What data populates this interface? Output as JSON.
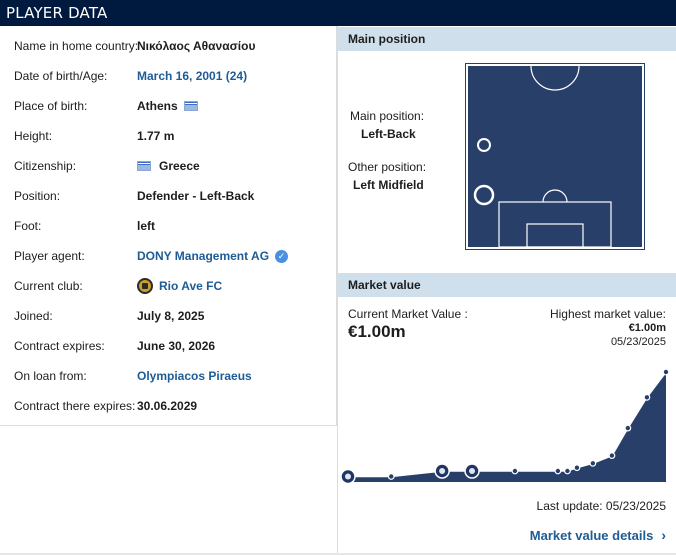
{
  "header": {
    "title": "PLAYER DATA"
  },
  "player": {
    "rows": [
      {
        "label": "Name in home country:",
        "value": "Νικόλαος Αθανασίου"
      },
      {
        "label": "Date of birth/Age:",
        "value": "March 16, 2001 (24)"
      },
      {
        "label": "Place of birth:",
        "value": "Athens"
      },
      {
        "label": "Height:",
        "value": "1.77 m"
      },
      {
        "label": "Citizenship:",
        "value": "Greece"
      },
      {
        "label": "Position:",
        "value": "Defender - Left-Back"
      },
      {
        "label": "Foot:",
        "value": "left"
      },
      {
        "label": "Player agent:",
        "value": "DONY Management AG"
      },
      {
        "label": "Current club:",
        "value": "Rio Ave FC"
      },
      {
        "label": "Joined:",
        "value": "July 8, 2025"
      },
      {
        "label": "Contract expires:",
        "value": "June 30, 2026"
      },
      {
        "label": "On loan from:",
        "value": "Olympiacos Piraeus"
      },
      {
        "label": "Contract there expires:",
        "value": "30.06.2029"
      }
    ]
  },
  "position": {
    "title": "Main position",
    "main_label": "Main position:",
    "main_value": "Left-Back",
    "other_label": "Other position:",
    "other_value": "Left Midfield"
  },
  "market": {
    "title": "Market value",
    "current_label": "Current Market Value :",
    "current_value": "€1.00m",
    "highest_label": "Highest market value:",
    "highest_value": "€1.00m",
    "highest_date": "05/23/2025",
    "last_update": "Last update: 05/23/2025",
    "details_link": "Market value details",
    "chevron": "›"
  },
  "chart_data": {
    "type": "area",
    "title": "Market value",
    "xlabel": "",
    "ylabel": "",
    "ylim": [
      0,
      1.0
    ],
    "x": [
      1,
      2,
      3,
      4,
      5,
      6,
      7,
      8,
      9,
      10,
      11,
      12,
      13
    ],
    "values": [
      0.05,
      0.05,
      0.1,
      0.1,
      0.1,
      0.1,
      0.1,
      0.13,
      0.17,
      0.24,
      0.49,
      0.77,
      1.0
    ],
    "markers": [
      "club-logo",
      "",
      "club-logo",
      "club-logo",
      "",
      "",
      "",
      "",
      "",
      "",
      "",
      "",
      ""
    ],
    "colors": {
      "fill": "#283f6a",
      "line": "#ffffff",
      "point": "#283f6a"
    }
  }
}
